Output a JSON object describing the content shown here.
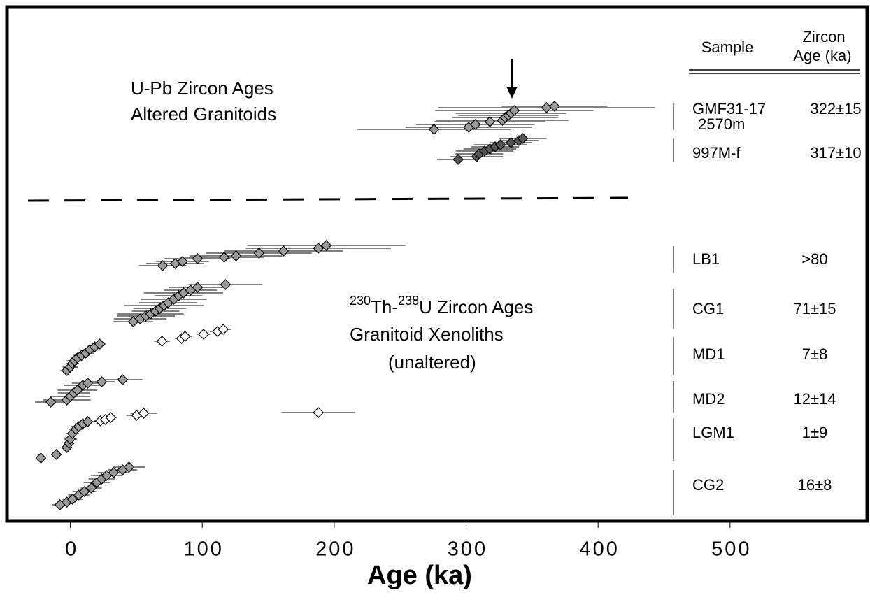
{
  "chart_data": {
    "type": "scatter",
    "xlabel": "Age (ka)",
    "xlim": [
      -48,
      604
    ],
    "xticks": [
      0,
      100,
      200,
      300,
      400,
      500
    ],
    "ylim": [
      0,
      735
    ],
    "annotations": {
      "upb_line1": "U-Pb Zircon Ages",
      "upb_line2": "Altered Granitoids",
      "th_line1": [
        {
          "text": "230",
          "sup": true
        },
        {
          "text": "Th-",
          "sup": false
        },
        {
          "text": "238",
          "sup": true
        },
        {
          "text": "U Zircon Ages",
          "sup": false
        }
      ],
      "th_line2": "Granitoid Xenoliths",
      "th_line3": "(unaltered)"
    },
    "table": {
      "header_sample": "Sample",
      "header_age_1": "Zircon",
      "header_age_2": "Age (ka)"
    },
    "series": [
      {
        "name": "GMF31-17",
        "depth": "2570m",
        "age": "322±15",
        "color": "#9a9a9a",
        "x": [
          275.6,
          302,
          307,
          318,
          327.5,
          329.6,
          332,
          334,
          336.5,
          361,
          367
        ],
        "y": [
          560,
          563,
          567,
          571,
          573,
          577,
          580,
          583,
          587,
          591,
          593
        ],
        "xerr": [
          58,
          48,
          45,
          42,
          50,
          40,
          38,
          42,
          60,
          82,
          40
        ]
      },
      {
        "name": "997M-f",
        "age": "317±10",
        "color": "#555555",
        "x": [
          294,
          308,
          310,
          314,
          318,
          322,
          326,
          334,
          340,
          343
        ],
        "y": [
          517,
          521,
          525,
          529,
          532,
          535,
          538,
          541,
          544,
          547
        ],
        "xerr": [
          16,
          20,
          18,
          22,
          20,
          18,
          20,
          16,
          15,
          18
        ]
      },
      {
        "name": "LB1",
        "age": ">80",
        "color": "#9a9a9a",
        "x": [
          70,
          79.5,
          85,
          96.4,
          116.6,
          125.6,
          143,
          161.6,
          188,
          194
        ],
        "y": [
          365,
          368,
          371,
          375,
          377,
          379,
          383,
          386,
          390,
          394
        ],
        "xerr": [
          18,
          22,
          20,
          25,
          30,
          35,
          40,
          45,
          55,
          60
        ]
      },
      {
        "name": "CG1",
        "age": "71±15",
        "color": "#9a9a9a",
        "x": [
          47.7,
          53,
          57.2,
          60.9,
          64.7,
          67.8,
          71,
          74.2,
          78.4,
          82.1,
          85.8,
          91.1,
          96.4,
          117.6
        ],
        "y": [
          285,
          289,
          293,
          296,
          300,
          304,
          308,
          312,
          317,
          322,
          326,
          330,
          334,
          338
        ],
        "xerr": [
          15,
          20,
          22,
          25,
          18,
          20,
          30,
          22,
          25,
          18,
          30,
          20,
          22,
          28
        ]
      },
      {
        "color": "#ffffff",
        "x": [
          69.5,
          84.3,
          87,
          101,
          111.6,
          115.9
        ],
        "y": [
          257,
          261,
          264,
          267,
          271,
          274
        ],
        "xerr": [
          6,
          5,
          5,
          5,
          6,
          6
        ]
      },
      {
        "name": "MD1",
        "age": "7±8",
        "color": "#9a9a9a",
        "x": [
          -2.6,
          0,
          1.6,
          3.2,
          5.3,
          8.5,
          11.7,
          14.8,
          18.5,
          22.3
        ],
        "y": [
          215,
          220,
          225,
          229,
          233,
          237,
          240,
          245,
          249,
          253
        ],
        "xerr": [
          5,
          6,
          5,
          6,
          5,
          6,
          6,
          5,
          5,
          5
        ]
      },
      {
        "name": "MD2",
        "age": "12±14",
        "color": "#9a9a9a",
        "x": [
          -14.8,
          -2.6,
          0,
          2.6,
          5.3,
          9.5,
          13.2,
          23.8,
          39.7
        ],
        "y": [
          170,
          173,
          178,
          183,
          187,
          194,
          197,
          199,
          202
        ],
        "xerr": [
          12,
          18,
          15,
          12,
          15,
          14,
          12,
          10,
          15
        ]
      },
      {
        "color": "#ffffff",
        "x": [
          188
        ],
        "y": [
          155
        ],
        "xerr": [
          28
        ]
      },
      {
        "name": "LGM1",
        "age": "1±9",
        "color": "#9a9a9a",
        "x": [
          -22.3,
          -10.6,
          -2.6,
          -1,
          0,
          1.6,
          4.2,
          6.4,
          9.5,
          13.2
        ],
        "y": [
          90,
          95,
          105,
          111,
          117,
          125,
          131,
          135,
          139,
          142
        ],
        "xerr": [
          3,
          4,
          4,
          4,
          5,
          5,
          5,
          6,
          6,
          6
        ]
      },
      {
        "color": "#ffffff",
        "x": [
          22.8,
          26.5,
          30.7,
          50.3,
          55.6
        ],
        "y": [
          143,
          145,
          148,
          151,
          154
        ],
        "xerr": [
          5,
          5,
          5,
          8,
          10
        ]
      },
      {
        "name": "CG2",
        "age": "16±8",
        "color": "#9a9a9a",
        "x": [
          -7.9,
          -2.6,
          1.6,
          6.4,
          10.6,
          15.9,
          20.1,
          23.8,
          27.6,
          32.9,
          39.7,
          44.5
        ],
        "y": [
          23,
          27,
          31,
          37,
          42,
          47,
          55,
          60,
          65,
          69,
          73,
          77
        ],
        "xerr": [
          6,
          7,
          8,
          8,
          9,
          8,
          10,
          10,
          12,
          12,
          11,
          12
        ]
      }
    ]
  }
}
